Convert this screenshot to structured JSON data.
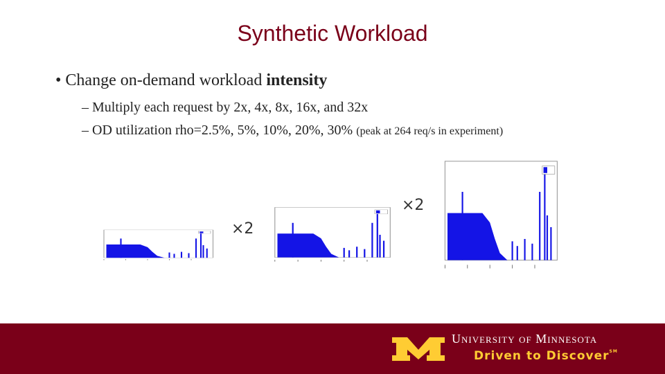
{
  "title": "Synthetic Workload",
  "bullet": {
    "text": "Change on-demand workload",
    "bold": "intensity"
  },
  "subbullets": [
    {
      "text": "Multiply each request by 2x, 4x, 8x, 16x, and 32x"
    },
    {
      "text": "OD utilization rho=2.5%, 5%, 10%, 20%, 30%",
      "note": "(peak at 264 req/s in experiment)"
    }
  ],
  "figure": {
    "multipliers": [
      "×2",
      "×2"
    ]
  },
  "footer": {
    "university": "University of Minnesota",
    "tagline": "Driven to Discover",
    "mark": "SM"
  }
}
